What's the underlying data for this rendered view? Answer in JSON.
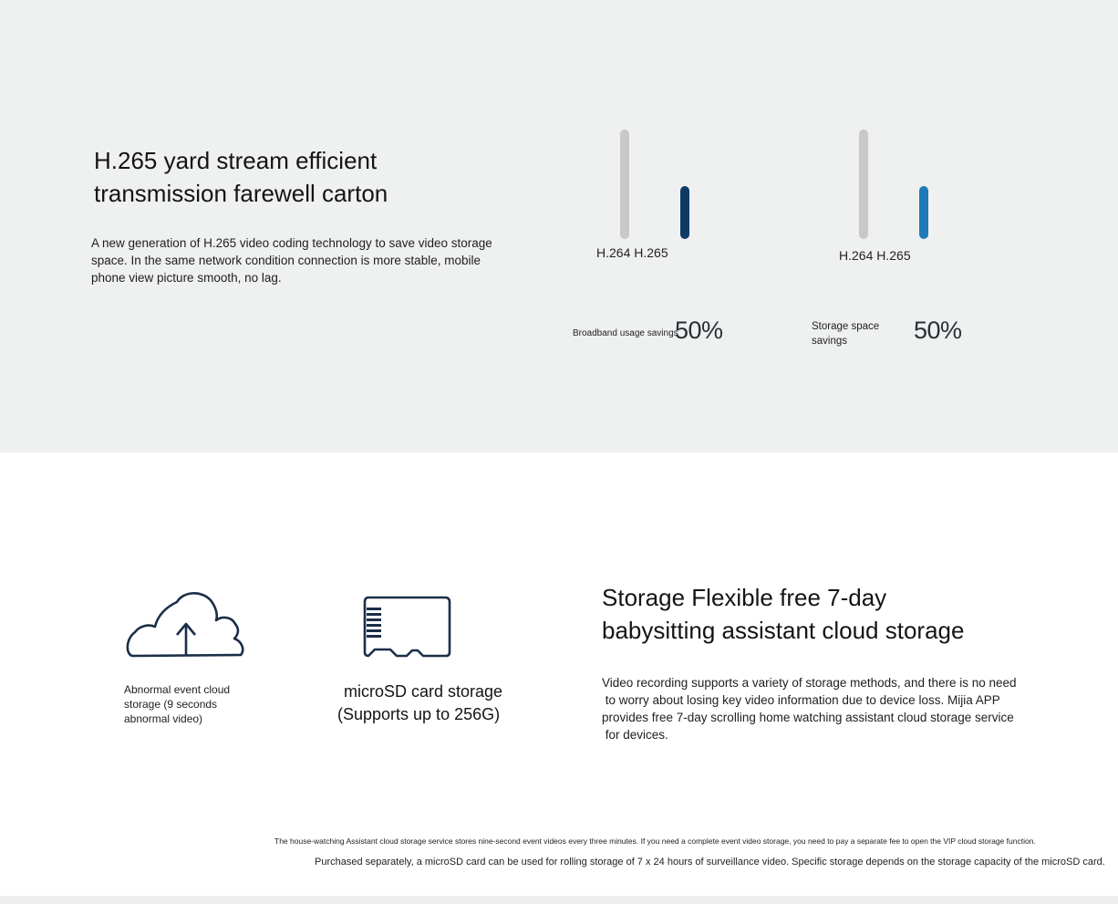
{
  "h265_section": {
    "title_line1": "H.265 yard stream efficient",
    "title_line2": "transmission farewell carton",
    "description_line1": "A new generation of H.265 video coding technology to save video storage",
    "description_line2": "space. In the same network condition connection is more stable, mobile",
    "description_line3": "phone view picture smooth, no lag."
  },
  "chart_data": [
    {
      "type": "bar",
      "categories": [
        "H.264",
        "H.265"
      ],
      "values": [
        100,
        50
      ],
      "title": "",
      "label": "Broadband usage savings",
      "savings_value": "50%",
      "colors": [
        "#c8c8c8",
        "#0f3a66"
      ]
    },
    {
      "type": "bar",
      "categories": [
        "H.264",
        "H.265"
      ],
      "values": [
        100,
        50
      ],
      "title": "",
      "label_line1": "Storage space",
      "label_line2": "savings",
      "savings_value": "50%",
      "colors": [
        "#c8c8c8",
        "#1e7ab8"
      ]
    }
  ],
  "storage_section": {
    "cloud_icon": "cloud-upload-icon",
    "cloud_label_line1": "Abnormal event cloud",
    "cloud_label_line2": "storage (9 seconds",
    "cloud_label_line3": "abnormal video)",
    "sd_icon": "microsd-card-icon",
    "sd_label_line1": "microSD card storage",
    "sd_label_line2": "(Supports up to 256G)",
    "title_line1": "Storage Flexible free 7-day",
    "title_line2": "babysitting assistant cloud storage",
    "description_line1": "Video recording supports a variety of storage methods, and there is no need",
    "description_line2": " to worry about losing key video information due to device loss. Mijia APP",
    "description_line3": "provides free 7-day scrolling home watching assistant cloud storage service",
    "description_line4": " for devices.",
    "icon_color": "#1b2e48"
  },
  "footnotes": {
    "line1": "The house-watching Assistant cloud storage service stores nine-second event videos every three minutes. If you need a complete event video storage, you need to pay a separate fee to open the VIP cloud storage function.",
    "line2": "Purchased separately, a microSD card can be used for rolling storage of 7 x 24 hours of surveillance video. Specific storage depends on the storage capacity of the microSD card."
  }
}
